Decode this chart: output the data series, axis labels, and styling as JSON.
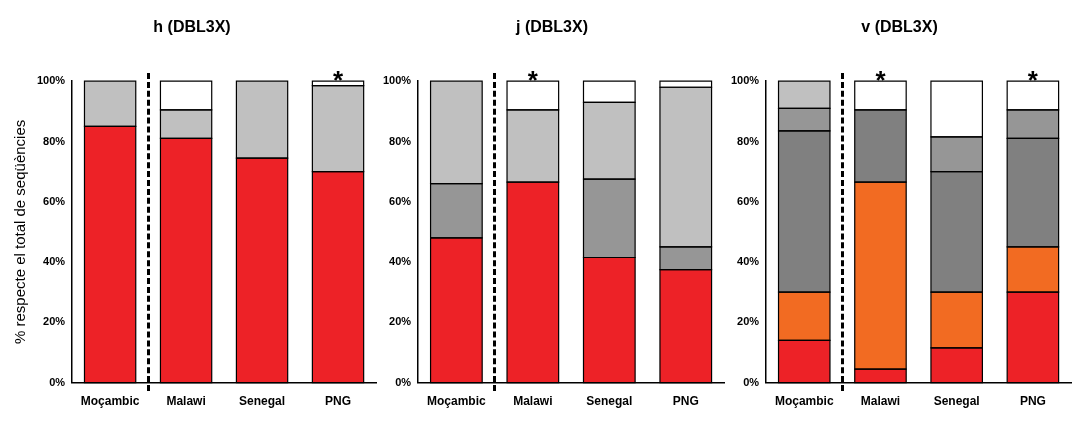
{
  "chart_data": [
    {
      "type": "bar",
      "title": "h (DBL3X)",
      "ylabel": "% respecte el total de seqüències",
      "categories": [
        "Moçambic",
        "Malawi",
        "Senegal",
        "PNG"
      ],
      "stacked": true,
      "grid": false,
      "legend": false,
      "series": [
        {
          "color": "#ed2227",
          "values": [
            85,
            81,
            74.5,
            70
          ]
        },
        {
          "color": "#c0c0c0",
          "values": [
            15,
            9.5,
            25.5,
            28.5
          ]
        },
        {
          "color": "#ffffff",
          "values": [
            0,
            9.5,
            0,
            1.5
          ]
        }
      ],
      "ylim": [
        0,
        100
      ],
      "yticks": [
        {
          "value": 0,
          "label": "0%"
        },
        {
          "value": 20,
          "label": "20%"
        },
        {
          "value": 40,
          "label": "40%"
        },
        {
          "value": 60,
          "label": "60%"
        },
        {
          "value": 80,
          "label": "80%"
        },
        {
          "value": 100,
          "label": "100%"
        }
      ],
      "annotations": [
        {
          "text": "*",
          "x": "PNG",
          "y": 100
        }
      ]
    },
    {
      "type": "bar",
      "title": "j (DBL3X)",
      "categories": [
        "Moçambic",
        "Malawi",
        "Senegal",
        "PNG"
      ],
      "stacked": true,
      "grid": false,
      "legend": false,
      "series": [
        {
          "color": "#ed2227",
          "values": [
            48,
            66.5,
            41.5,
            37.5
          ]
        },
        {
          "color": "#969696",
          "values": [
            18,
            0,
            26,
            7.5
          ]
        },
        {
          "color": "#c0c0c0",
          "values": [
            34,
            24,
            25.5,
            53
          ]
        },
        {
          "color": "#ffffff",
          "values": [
            0,
            9.5,
            7,
            2
          ]
        }
      ],
      "ylim": [
        0,
        100
      ],
      "yticks": [
        {
          "value": 0,
          "label": "0%"
        },
        {
          "value": 20,
          "label": "20%"
        },
        {
          "value": 40,
          "label": "40%"
        },
        {
          "value": 60,
          "label": "60%"
        },
        {
          "value": 80,
          "label": "80%"
        },
        {
          "value": 100,
          "label": "100%"
        }
      ],
      "annotations": [
        {
          "text": "*",
          "x": "Malawi",
          "y": 100
        }
      ]
    },
    {
      "type": "bar",
      "title": "v (DBL3X)",
      "categories": [
        "Moçambic",
        "Malawi",
        "Senegal",
        "PNG"
      ],
      "stacked": true,
      "grid": false,
      "legend": false,
      "series": [
        {
          "color": "#ed2227",
          "values": [
            14,
            4.5,
            11.5,
            30
          ]
        },
        {
          "color": "#f26b22",
          "values": [
            16,
            62,
            18.5,
            15
          ]
        },
        {
          "color": "#808080",
          "values": [
            53.5,
            24,
            40,
            36
          ]
        },
        {
          "color": "#969696",
          "values": [
            7.5,
            0,
            11.5,
            9.5
          ]
        },
        {
          "color": "#c0c0c0",
          "values": [
            9,
            0,
            0,
            0
          ]
        },
        {
          "color": "#ffffff",
          "values": [
            0,
            9.5,
            18.5,
            9.5
          ]
        }
      ],
      "ylim": [
        0,
        100
      ],
      "yticks": [
        {
          "value": 0,
          "label": "0%"
        },
        {
          "value": 20,
          "label": "20%"
        },
        {
          "value": 40,
          "label": "40%"
        },
        {
          "value": 60,
          "label": "60%"
        },
        {
          "value": 80,
          "label": "80%"
        },
        {
          "value": 100,
          "label": "100%"
        }
      ],
      "annotations": [
        {
          "text": "*",
          "x": "Malawi",
          "y": 100
        },
        {
          "text": "*",
          "x": "PNG",
          "y": 100
        }
      ]
    }
  ]
}
